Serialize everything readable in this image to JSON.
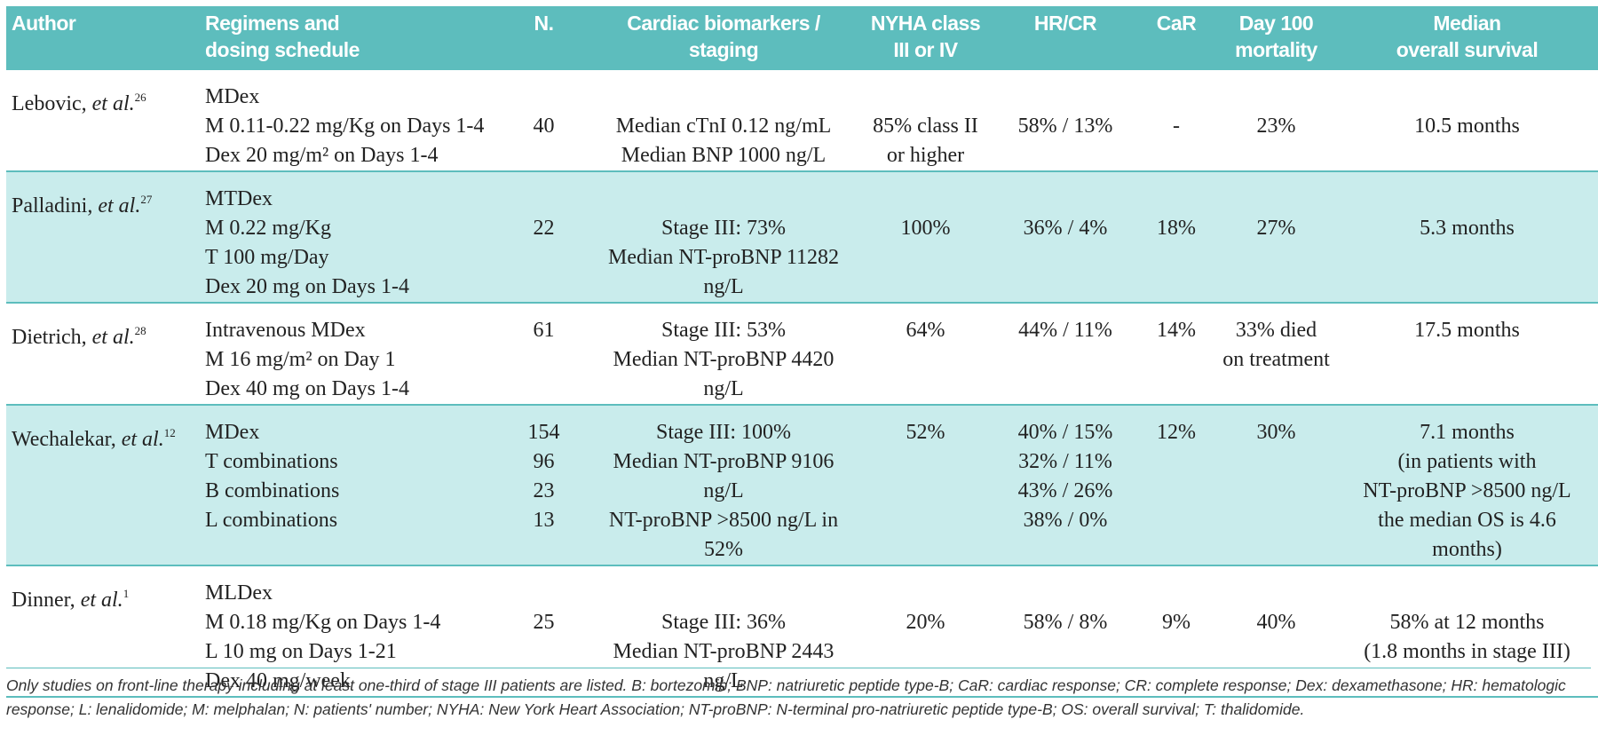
{
  "table": {
    "header": [
      [
        "Author"
      ],
      [
        "Regimens and",
        "dosing schedule"
      ],
      [
        "N."
      ],
      [
        "Cardiac biomarkers /",
        "staging"
      ],
      [
        "NYHA class",
        "III or IV"
      ],
      [
        "HR/CR"
      ],
      [
        "CaR"
      ],
      [
        "Day 100",
        "mortality"
      ],
      [
        "Median",
        "overall survival"
      ]
    ],
    "rows": [
      {
        "author": {
          "name": "Lebovic,",
          "etal": "et al.",
          "ref": "26"
        },
        "cells": [
          [
            "MDex",
            "M 0.11-0.22 mg/Kg on Days 1-4",
            "Dex 20 mg/m² on Days 1-4"
          ],
          [
            "40"
          ],
          [
            "Median cTnI 0.12 ng/mL",
            "Median BNP 1000 ng/L"
          ],
          [
            "85% class II",
            "or higher"
          ],
          [
            "58% / 13%"
          ],
          [
            "-"
          ],
          [
            "23%"
          ],
          [
            "10.5 months"
          ]
        ]
      },
      {
        "author": {
          "name": "Palladini,",
          "etal": "et al.",
          "ref": "27"
        },
        "cells": [
          [
            "MTDex",
            "M 0.22 mg/Kg",
            "T 100 mg/Day",
            "Dex 20 mg on Days 1-4"
          ],
          [
            "22"
          ],
          [
            "Stage III: 73%",
            "Median NT-proBNP 11282 ng/L"
          ],
          [
            "100%"
          ],
          [
            "36% / 4%"
          ],
          [
            "18%"
          ],
          [
            "27%"
          ],
          [
            "5.3 months"
          ]
        ]
      },
      {
        "author": {
          "name": "Dietrich,",
          "etal": "et al.",
          "ref": "28"
        },
        "cells": [
          [
            "Intravenous MDex",
            "M 16 mg/m² on Day 1",
            "Dex 40 mg on Days 1-4"
          ],
          [
            "61"
          ],
          [
            "Stage III: 53%",
            "Median NT-proBNP 4420 ng/L"
          ],
          [
            "64%"
          ],
          [
            "44% / 11%"
          ],
          [
            "14%"
          ],
          [
            "33% died",
            "on treatment"
          ],
          [
            "17.5 months"
          ]
        ]
      },
      {
        "author": {
          "name": "Wechalekar,",
          "etal": "et al.",
          "ref": "12"
        },
        "cells": [
          [
            "MDex",
            "T combinations",
            "B combinations",
            "L combinations"
          ],
          [
            "154",
            "96",
            "23",
            "13"
          ],
          [
            "Stage III: 100%",
            "Median NT-proBNP 9106 ng/L",
            "NT-proBNP >8500 ng/L in 52%"
          ],
          [
            "52%"
          ],
          [
            "40% / 15%",
            "32% / 11%",
            "43% / 26%",
            "38% / 0%"
          ],
          [
            "12%"
          ],
          [
            "30%"
          ],
          [
            "7.1 months",
            "(in patients with",
            "NT-proBNP >8500 ng/L",
            "the median OS is 4.6 months)"
          ]
        ]
      },
      {
        "author": {
          "name": "Dinner,",
          "etal": "et al.",
          "ref": "1"
        },
        "cells": [
          [
            "MLDex",
            "M 0.18 mg/Kg on Days 1-4",
            "L 10 mg on Days 1-21",
            "Dex 40 mg/week"
          ],
          [
            "25"
          ],
          [
            "Stage III: 36%",
            "Median NT-proBNP 2443 ng/L"
          ],
          [
            "20%"
          ],
          [
            "58% / 8%"
          ],
          [
            "9%"
          ],
          [
            "40%"
          ],
          [
            "58% at 12 months",
            "(1.8 months in stage III)"
          ]
        ]
      }
    ]
  },
  "footnote": "Only studies on front-line therapy including at least one-third of stage III patients are listed. B: bortezomib; BNP: natriuretic peptide type-B; CaR: cardiac response; CR: complete response; Dex: dexamethasone; HR: hematologic response; L: lenalidomide; M: melphalan; N: patients' number; NYHA: New York Heart Association; NT-proBNP: N-terminal pro-natriuretic peptide type-B; OS: overall survival; T: thalidomide."
}
